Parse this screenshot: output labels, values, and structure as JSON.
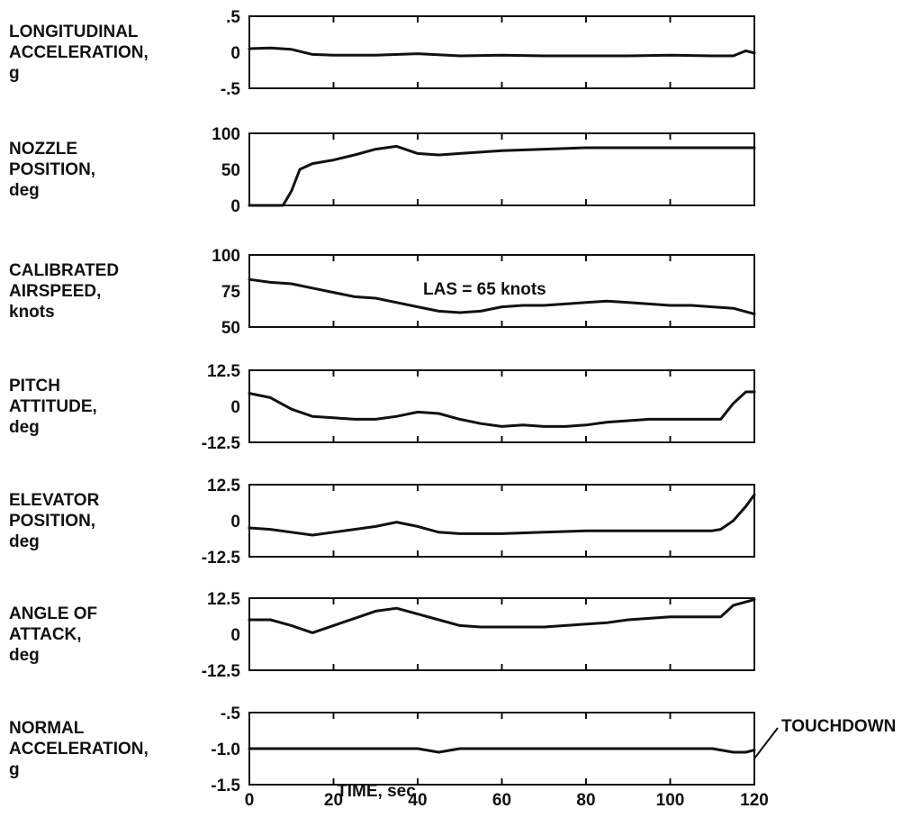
{
  "chart_data": {
    "type": "line",
    "xlabel": "TIME, sec",
    "xlim": [
      0,
      120
    ],
    "x_ticks": [
      "0",
      "20",
      "40",
      "60",
      "80",
      "100",
      "120"
    ],
    "annotation_touchdown": "TOUCHDOWN",
    "panels": [
      {
        "label_lines": [
          "LONGITUDINAL",
          "ACCELERATION,",
          "g"
        ],
        "y_ticks": [
          ".5",
          "0",
          "-.5"
        ],
        "ylim": [
          -0.5,
          0.5
        ],
        "series": [
          {
            "x": [
              0,
              5,
              10,
              15,
              20,
              30,
              40,
              50,
              60,
              70,
              80,
              90,
              100,
              110,
              115,
              118,
              120
            ],
            "y": [
              0.05,
              0.06,
              0.04,
              -0.03,
              -0.04,
              -0.04,
              -0.02,
              -0.05,
              -0.04,
              -0.05,
              -0.05,
              -0.05,
              -0.04,
              -0.05,
              -0.05,
              0.02,
              -0.01
            ]
          }
        ]
      },
      {
        "label_lines": [
          "NOZZLE",
          "POSITION,",
          "deg"
        ],
        "y_ticks": [
          "100",
          "50",
          "0"
        ],
        "ylim": [
          0,
          100
        ],
        "series": [
          {
            "x": [
              0,
              8,
              10,
              12,
              15,
              20,
              25,
              30,
              35,
              40,
              45,
              50,
              60,
              70,
              80,
              90,
              100,
              110,
              120
            ],
            "y": [
              0,
              0,
              20,
              50,
              58,
              63,
              70,
              78,
              82,
              72,
              70,
              72,
              76,
              78,
              80,
              80,
              80,
              80,
              80
            ]
          }
        ]
      },
      {
        "label_lines": [
          "CALIBRATED",
          "AIRSPEED,",
          "knots"
        ],
        "y_ticks": [
          "100",
          "75",
          "50"
        ],
        "ylim": [
          50,
          100
        ],
        "annotation": "LAS = 65 knots",
        "series": [
          {
            "x": [
              0,
              5,
              10,
              15,
              20,
              25,
              30,
              35,
              40,
              45,
              50,
              55,
              60,
              65,
              70,
              75,
              80,
              85,
              90,
              95,
              100,
              105,
              110,
              115,
              120
            ],
            "y": [
              83,
              81,
              80,
              77,
              74,
              71,
              70,
              67,
              64,
              61,
              60,
              61,
              64,
              65,
              65,
              66,
              67,
              68,
              67,
              66,
              65,
              65,
              64,
              63,
              59
            ]
          }
        ]
      },
      {
        "label_lines": [
          "PITCH",
          "ATTITUDE,",
          "deg"
        ],
        "y_ticks": [
          "12.5",
          "0",
          "-12.5"
        ],
        "ylim": [
          -12.5,
          12.5
        ],
        "series": [
          {
            "x": [
              0,
              5,
              10,
              15,
              20,
              25,
              30,
              35,
              40,
              45,
              50,
              55,
              60,
              65,
              70,
              75,
              80,
              85,
              90,
              95,
              100,
              105,
              110,
              112,
              115,
              118,
              120
            ],
            "y": [
              4.5,
              3,
              -1,
              -3.5,
              -4,
              -4.5,
              -4.5,
              -3.5,
              -2,
              -2.5,
              -4.5,
              -6,
              -7,
              -6.5,
              -7,
              -7,
              -6.5,
              -5.5,
              -5,
              -4.5,
              -4.5,
              -4.5,
              -4.5,
              -4.5,
              1,
              5,
              5
            ]
          }
        ]
      },
      {
        "label_lines": [
          "ELEVATOR",
          "POSITION,",
          "deg"
        ],
        "y_ticks": [
          "12.5",
          "0",
          "-12.5"
        ],
        "ylim": [
          -12.5,
          12.5
        ],
        "series": [
          {
            "x": [
              0,
              5,
              10,
              15,
              20,
              25,
              30,
              35,
              40,
              45,
              50,
              60,
              70,
              80,
              90,
              100,
              105,
              110,
              112,
              115,
              118,
              120
            ],
            "y": [
              -2.5,
              -3,
              -4,
              -5,
              -4,
              -3,
              -2,
              -0.5,
              -2,
              -4,
              -4.5,
              -4.5,
              -4,
              -3.5,
              -3.5,
              -3.5,
              -3.5,
              -3.5,
              -3,
              0,
              5,
              9
            ]
          }
        ]
      },
      {
        "label_lines": [
          "ANGLE OF",
          "ATTACK,",
          "deg"
        ],
        "y_ticks": [
          "12.5",
          "0",
          "-12.5"
        ],
        "ylim": [
          -12.5,
          12.5
        ],
        "series": [
          {
            "x": [
              0,
              5,
              10,
              15,
              20,
              25,
              30,
              35,
              40,
              45,
              50,
              55,
              60,
              65,
              70,
              75,
              80,
              85,
              90,
              95,
              100,
              105,
              110,
              112,
              115,
              120
            ],
            "y": [
              5,
              5,
              3,
              0.5,
              3,
              5.5,
              8,
              9,
              7,
              5,
              3,
              2.5,
              2.5,
              2.5,
              2.5,
              3,
              3.5,
              4,
              5,
              5.5,
              6,
              6,
              6,
              6,
              10,
              12
            ]
          }
        ]
      },
      {
        "label_lines": [
          "NORMAL",
          "ACCELERATION,",
          "g"
        ],
        "y_ticks": [
          "-.5",
          "-1.0",
          "-1.5"
        ],
        "ylim": [
          -1.5,
          -0.5
        ],
        "series": [
          {
            "x": [
              0,
              10,
              20,
              30,
              40,
              45,
              50,
              60,
              70,
              80,
              90,
              100,
              110,
              115,
              118,
              120
            ],
            "y": [
              -1.0,
              -1.0,
              -1.0,
              -1.0,
              -1.0,
              -1.05,
              -1.0,
              -1.0,
              -1.0,
              -1.0,
              -1.0,
              -1.0,
              -1.0,
              -1.05,
              -1.05,
              -1.02
            ]
          }
        ]
      }
    ]
  }
}
